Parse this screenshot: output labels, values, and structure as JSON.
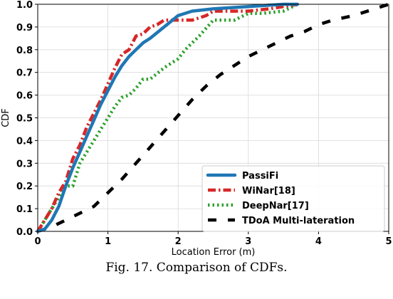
{
  "caption": "Fig. 17.    Comparison of CDFs.",
  "chart_data": {
    "type": "line",
    "xlabel": "Location Error (m)",
    "ylabel": "CDF",
    "xlim": [
      0,
      5
    ],
    "ylim": [
      0,
      1
    ],
    "xticks": [
      "0",
      "1",
      "2",
      "3",
      "4",
      "5"
    ],
    "yticks": [
      "0.0",
      "0.1",
      "0.2",
      "0.3",
      "0.4",
      "0.5",
      "0.6",
      "0.7",
      "0.8",
      "0.9",
      "1.0"
    ],
    "grid": true,
    "legend_position": "lower-right",
    "series": [
      {
        "name": "PassiFi",
        "color": "#1f77b4",
        "style": "solid",
        "x": [
          0.0,
          0.1,
          0.2,
          0.3,
          0.4,
          0.5,
          0.6,
          0.7,
          0.8,
          0.9,
          1.0,
          1.1,
          1.2,
          1.3,
          1.4,
          1.5,
          1.6,
          1.8,
          2.0,
          2.2,
          2.5,
          3.0,
          3.5,
          3.7
        ],
        "y": [
          0.0,
          0.01,
          0.05,
          0.11,
          0.2,
          0.28,
          0.35,
          0.42,
          0.49,
          0.56,
          0.62,
          0.68,
          0.73,
          0.77,
          0.8,
          0.83,
          0.85,
          0.9,
          0.95,
          0.97,
          0.98,
          0.99,
          1.0,
          1.0
        ]
      },
      {
        "name": "WiNar[18]",
        "color": "#d62728",
        "style": "dashdot",
        "x": [
          0.0,
          0.1,
          0.2,
          0.3,
          0.4,
          0.5,
          0.6,
          0.7,
          0.8,
          0.9,
          1.0,
          1.1,
          1.2,
          1.3,
          1.4,
          1.5,
          1.6,
          1.7,
          1.8,
          2.0,
          2.2,
          2.4,
          2.5,
          3.0,
          3.3,
          3.7
        ],
        "y": [
          0.0,
          0.05,
          0.1,
          0.17,
          0.22,
          0.32,
          0.38,
          0.46,
          0.52,
          0.58,
          0.65,
          0.72,
          0.78,
          0.8,
          0.86,
          0.87,
          0.9,
          0.91,
          0.93,
          0.93,
          0.93,
          0.95,
          0.97,
          0.97,
          0.98,
          1.0
        ]
      },
      {
        "name": "DeepNar[17]",
        "color": "#2ca02c",
        "style": "dotted",
        "x": [
          0.0,
          0.1,
          0.2,
          0.3,
          0.4,
          0.5,
          0.6,
          0.7,
          0.8,
          0.9,
          1.0,
          1.1,
          1.2,
          1.3,
          1.4,
          1.5,
          1.6,
          1.8,
          2.0,
          2.1,
          2.3,
          2.5,
          2.8,
          3.0,
          3.2,
          3.5,
          3.7
        ],
        "y": [
          0.0,
          0.05,
          0.1,
          0.15,
          0.2,
          0.2,
          0.3,
          0.35,
          0.4,
          0.45,
          0.5,
          0.55,
          0.59,
          0.6,
          0.63,
          0.67,
          0.67,
          0.72,
          0.76,
          0.8,
          0.86,
          0.93,
          0.93,
          0.96,
          0.96,
          0.97,
          1.0
        ]
      },
      {
        "name": "TDoA Multi-lateration",
        "color": "#000000",
        "style": "dashed",
        "x": [
          0.0,
          0.2,
          0.4,
          0.6,
          0.8,
          1.0,
          1.2,
          1.4,
          1.6,
          1.8,
          2.0,
          2.2,
          2.4,
          2.6,
          2.8,
          3.0,
          3.2,
          3.4,
          3.6,
          3.8,
          4.0,
          4.2,
          4.5,
          4.8,
          5.0
        ],
        "y": [
          0.0,
          0.02,
          0.05,
          0.08,
          0.11,
          0.17,
          0.23,
          0.3,
          0.37,
          0.44,
          0.51,
          0.58,
          0.64,
          0.69,
          0.73,
          0.77,
          0.8,
          0.83,
          0.86,
          0.88,
          0.91,
          0.93,
          0.95,
          0.98,
          1.0
        ]
      }
    ]
  }
}
